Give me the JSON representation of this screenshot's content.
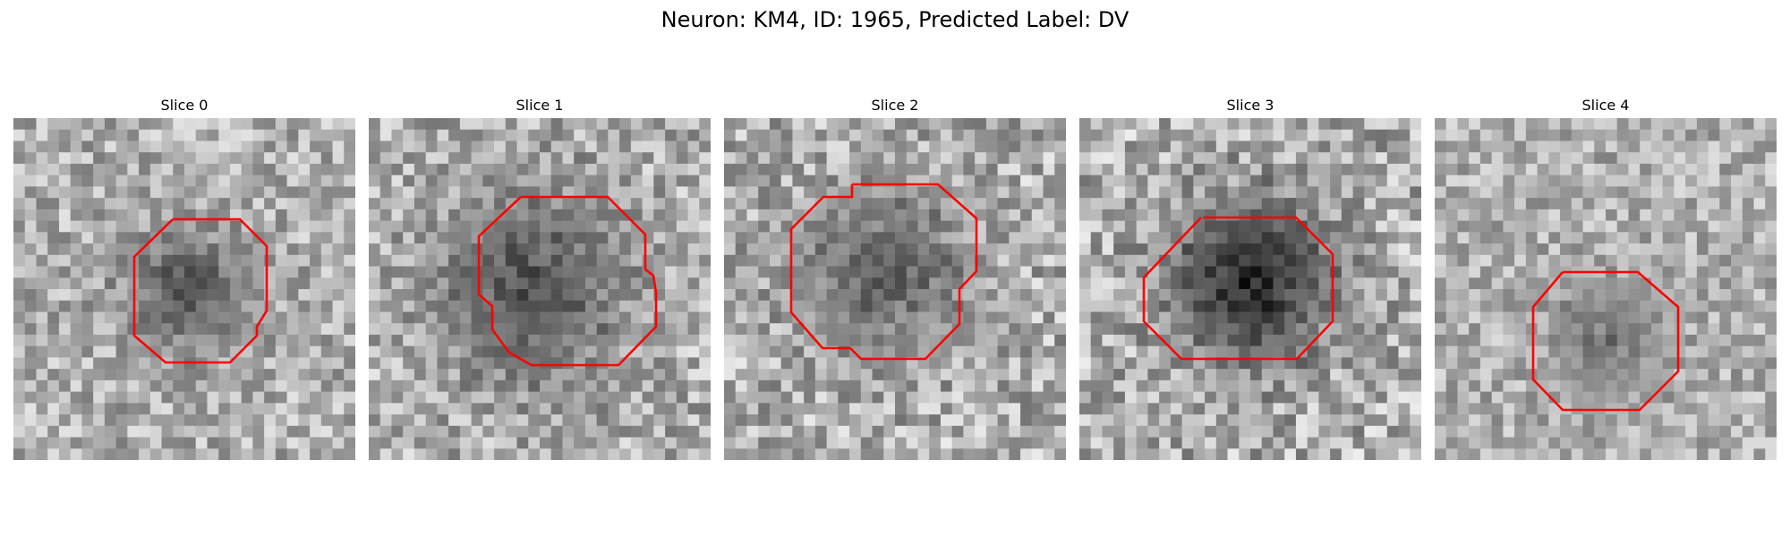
{
  "figure": {
    "title": "Neuron: KM4, ID: 1965, Predicted Label: DV"
  },
  "slices": [
    {
      "label": "Slice 0"
    },
    {
      "label": "Slice 1"
    },
    {
      "label": "Slice 2"
    },
    {
      "label": "Slice 3"
    },
    {
      "label": "Slice 4"
    }
  ],
  "colors": {
    "contour": "#ff0000",
    "background": "#ffffff"
  }
}
